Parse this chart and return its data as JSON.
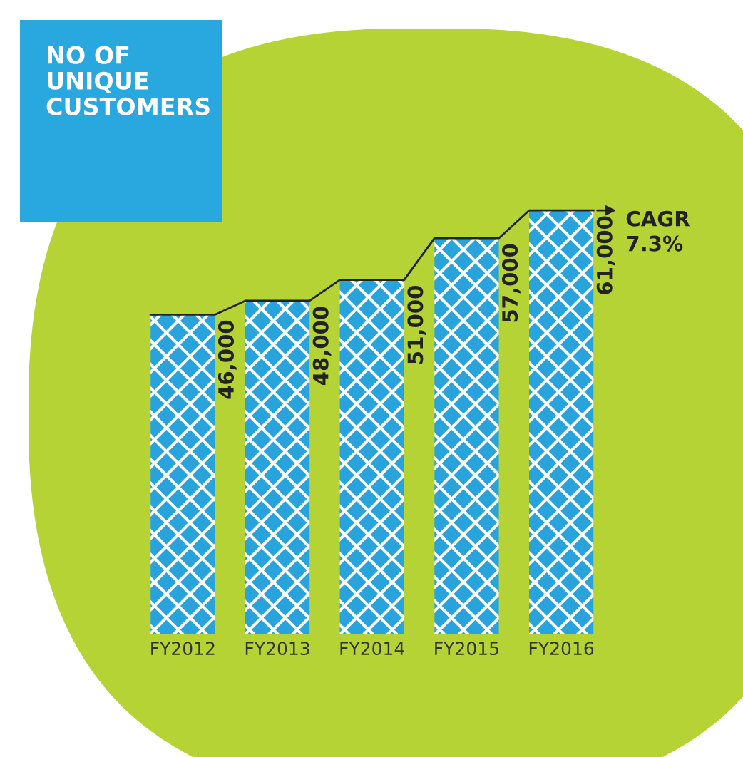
{
  "chart_data": {
    "type": "bar",
    "title": "NO OF\nUNIQUE\nCUSTOMERS",
    "categories": [
      "FY2012",
      "FY2013",
      "FY2014",
      "FY2015",
      "FY2016"
    ],
    "values": [
      46000,
      48000,
      51000,
      57000,
      61000
    ],
    "value_labels": [
      "46,000",
      "48,000",
      "51,000",
      "57,000",
      "61,000"
    ],
    "color": "#29a3dc",
    "annotations": [
      "CAGR\n7.3%"
    ]
  }
}
